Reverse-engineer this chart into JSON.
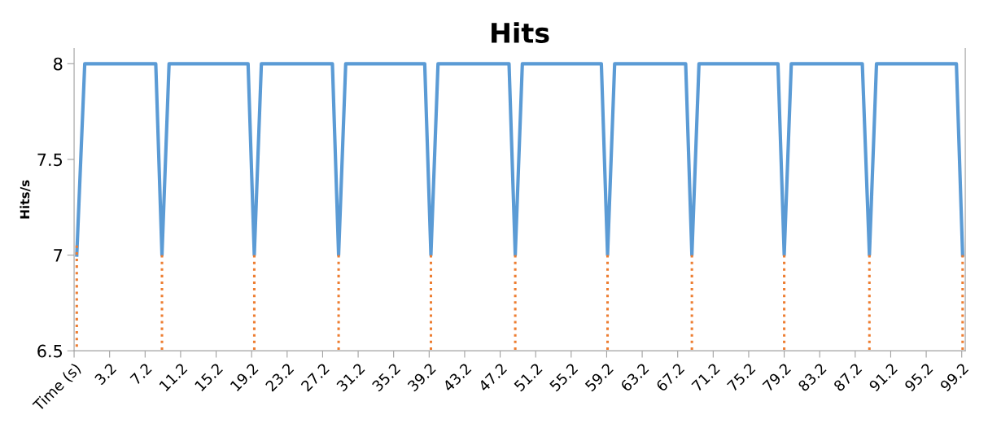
{
  "chart_data": {
    "type": "line",
    "title": "Hits",
    "ylabel": "Hits/s",
    "xlim": [
      -0.8,
      99.6
    ],
    "xticks": [
      {
        "value": -0.8,
        "label": "Time (s)"
      },
      3.2,
      7.2,
      11.2,
      15.2,
      19.2,
      23.2,
      27.2,
      31.2,
      35.2,
      39.2,
      43.2,
      47.2,
      51.2,
      55.2,
      59.2,
      63.2,
      67.2,
      71.2,
      75.2,
      79.2,
      83.2,
      87.2,
      91.2,
      95.2,
      99.2
    ],
    "ylim": [
      6.5,
      8.08
    ],
    "yticks": [
      6.5,
      7,
      7.5,
      8
    ],
    "grid": false,
    "legend": false,
    "series": [
      {
        "color": "#5b9bd5",
        "line_style": "solid",
        "x": [
          -0.5,
          0.4,
          8.4,
          9.1,
          9.9,
          18.8,
          19.5,
          20.3,
          28.3,
          29.0,
          29.8,
          38.7,
          39.4,
          40.2,
          48.2,
          48.9,
          49.7,
          58.6,
          59.3,
          60.1,
          68.1,
          68.8,
          69.6,
          78.5,
          79.2,
          80.0,
          88.0,
          88.8,
          89.6,
          98.6,
          99.3
        ],
        "values": [
          7,
          8,
          8,
          7,
          8,
          8,
          7,
          8,
          8,
          7,
          8,
          8,
          7,
          8,
          8,
          7,
          8,
          8,
          7,
          8,
          8,
          7,
          8,
          8,
          7,
          8,
          8,
          7,
          8,
          8,
          7
        ]
      },
      {
        "color": "#ed7d31",
        "line_style": "dotted",
        "x": [
          -0.5,
          -0.5
        ],
        "values": [
          6.5,
          7.05
        ]
      },
      {
        "color": "#ed7d31",
        "line_style": "dotted",
        "x": [
          9.1,
          9.1
        ],
        "values": [
          6.5,
          7
        ]
      },
      {
        "color": "#ed7d31",
        "line_style": "dotted",
        "x": [
          19.5,
          19.5
        ],
        "values": [
          6.5,
          7
        ]
      },
      {
        "color": "#ed7d31",
        "line_style": "dotted",
        "x": [
          29.0,
          29.0
        ],
        "values": [
          6.5,
          7
        ]
      },
      {
        "color": "#ed7d31",
        "line_style": "dotted",
        "x": [
          39.4,
          39.4
        ],
        "values": [
          6.5,
          7
        ]
      },
      {
        "color": "#ed7d31",
        "line_style": "dotted",
        "x": [
          48.9,
          48.9
        ],
        "values": [
          6.5,
          7
        ]
      },
      {
        "color": "#ed7d31",
        "line_style": "dotted",
        "x": [
          59.3,
          59.3
        ],
        "values": [
          6.5,
          7
        ]
      },
      {
        "color": "#ed7d31",
        "line_style": "dotted",
        "x": [
          68.8,
          68.8
        ],
        "values": [
          6.5,
          7
        ]
      },
      {
        "color": "#ed7d31",
        "line_style": "dotted",
        "x": [
          79.2,
          79.2
        ],
        "values": [
          6.5,
          7
        ]
      },
      {
        "color": "#ed7d31",
        "line_style": "dotted",
        "x": [
          88.8,
          88.8
        ],
        "values": [
          6.5,
          7
        ]
      },
      {
        "color": "#ed7d31",
        "line_style": "dotted",
        "x": [
          99.3,
          99.3
        ],
        "values": [
          6.5,
          7
        ]
      }
    ]
  }
}
